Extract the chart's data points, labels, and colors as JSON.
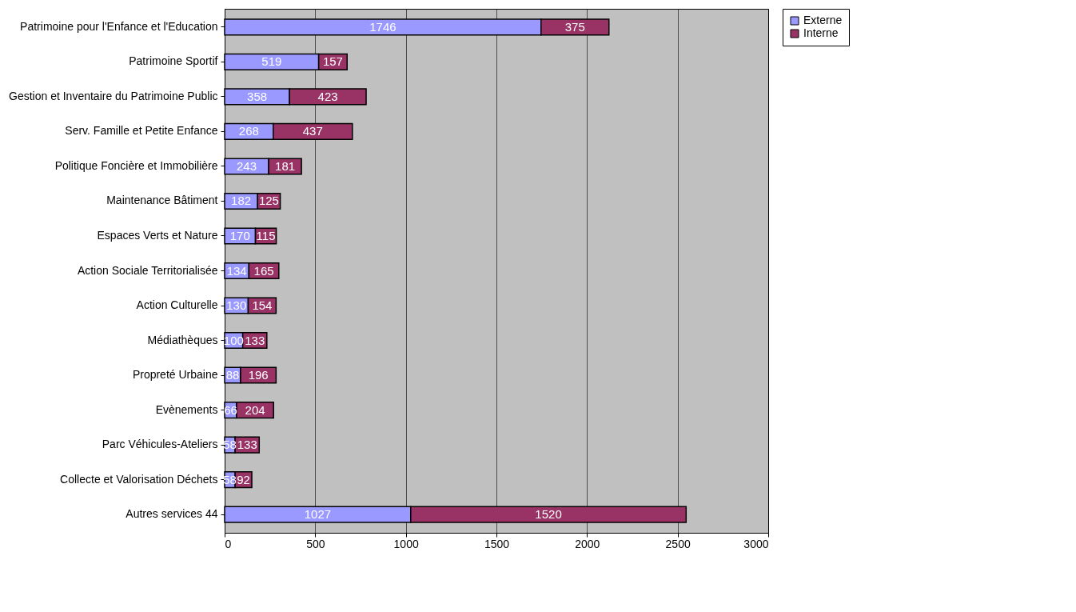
{
  "chart_data": {
    "type": "bar",
    "orientation": "horizontal",
    "stacked": true,
    "categories": [
      "Patrimoine pour l'Enfance et l'Education",
      "Patrimoine Sportif",
      "Gestion et Inventaire du Patrimoine Public",
      "Serv. Famille et Petite Enfance",
      "Politique Foncière et Immobilière",
      "Maintenance Bâtiment",
      "Espaces Verts et Nature",
      "Action Sociale Territorialisée",
      "Action Culturelle",
      "Médiathèques",
      "Propreté Urbaine",
      "Evènements",
      "Parc Véhicules-Ateliers",
      "Collecte et Valorisation Déchets",
      "Autres services 44"
    ],
    "series": [
      {
        "name": "Externe",
        "color": "#9999ff",
        "values": [
          1746,
          519,
          358,
          268,
          243,
          182,
          170,
          134,
          130,
          100,
          88,
          66,
          58,
          58,
          1027
        ]
      },
      {
        "name": "Interne",
        "color": "#993366",
        "values": [
          375,
          157,
          423,
          437,
          181,
          125,
          115,
          165,
          154,
          133,
          196,
          204,
          133,
          92,
          1520
        ]
      }
    ],
    "xlim": [
      0,
      3000
    ],
    "xticks": [
      0,
      500,
      1000,
      1500,
      2000,
      2500,
      3000
    ],
    "grid": "x",
    "legend": "right",
    "data_labels": true
  }
}
